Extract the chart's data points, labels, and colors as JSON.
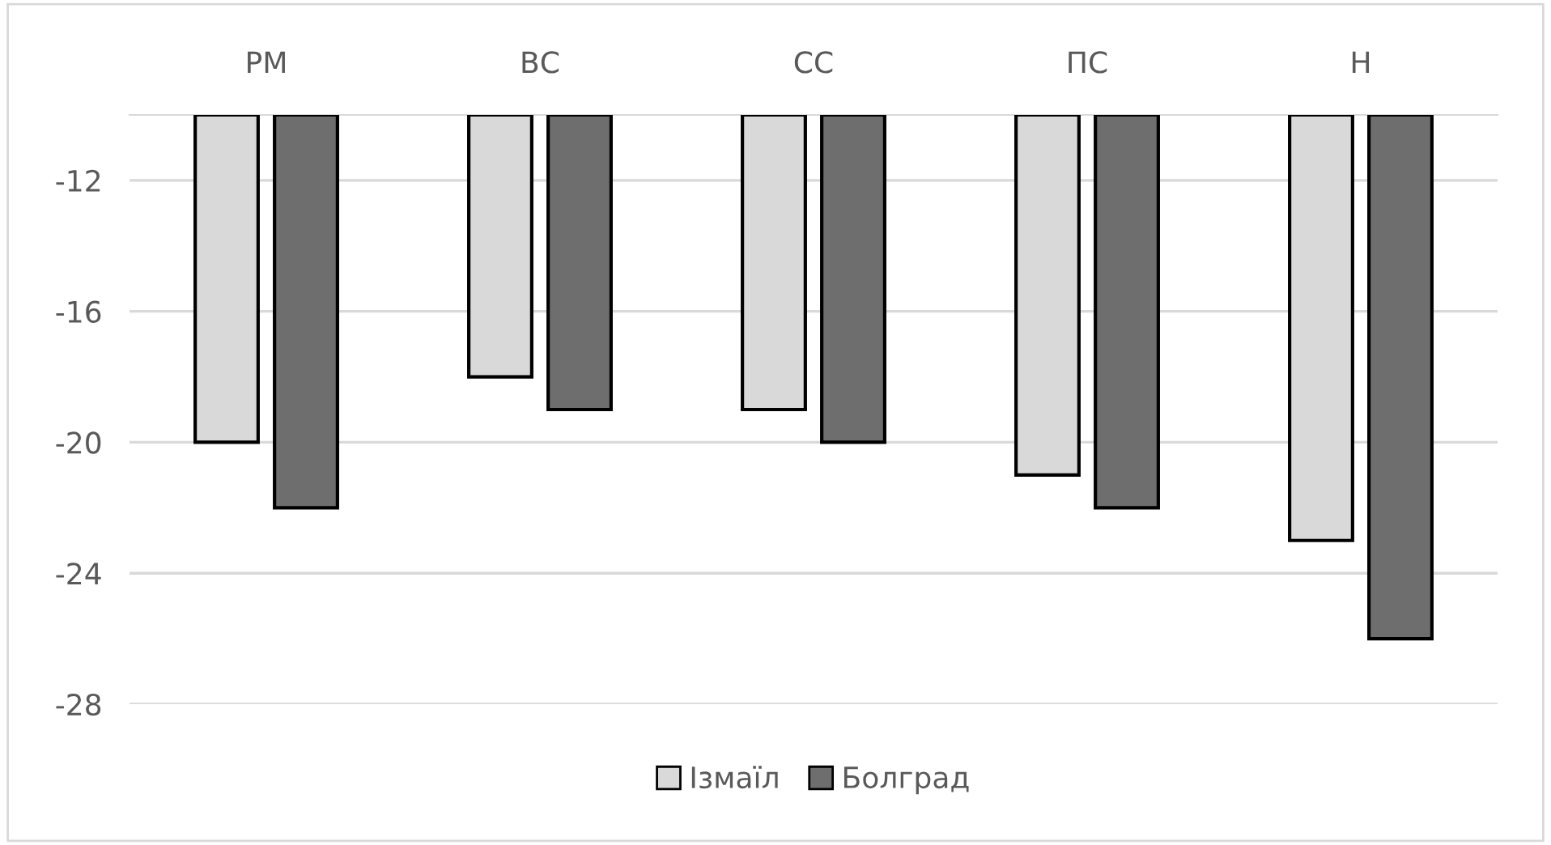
{
  "chart_data": {
    "type": "bar",
    "categories": [
      "РМ",
      "ВС",
      "СС",
      "ПС",
      "Н"
    ],
    "series": [
      {
        "name": "Ізмаїл",
        "color": "#d9d9d9",
        "values": [
          -20,
          -18,
          -19,
          -21,
          -23
        ]
      },
      {
        "name": "Болград",
        "color": "#6e6e6e",
        "values": [
          -22,
          -19,
          -20,
          -22,
          -26
        ]
      }
    ],
    "ylim": [
      -28,
      -10
    ],
    "yticks": [
      -12,
      -16,
      -20,
      -24,
      -28
    ],
    "grid": "y",
    "legend": "bottom"
  }
}
